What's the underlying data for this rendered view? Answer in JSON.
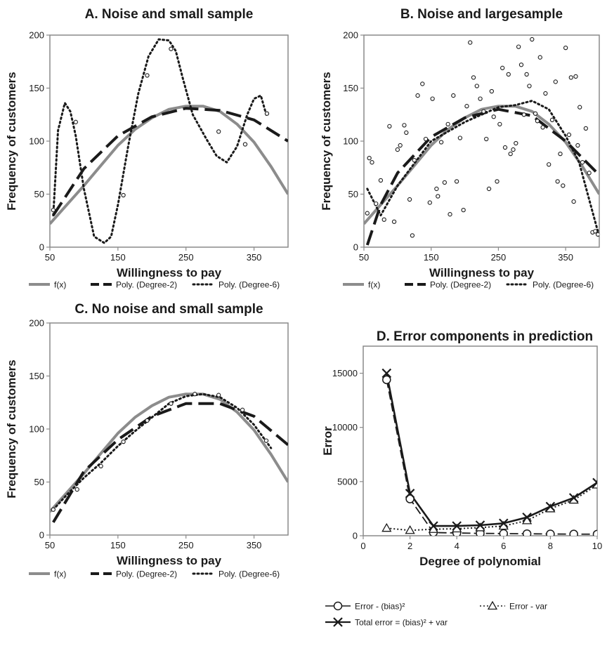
{
  "chart_data": [
    {
      "type": "scatter",
      "title": "A. Noise and small sample",
      "xlabel": "Willingness to pay",
      "ylabel": "Frequency of customers",
      "xlim": [
        50,
        400
      ],
      "ylim": [
        0,
        200
      ],
      "xticks": [
        "50",
        "150",
        "250",
        "350"
      ],
      "yticks": [
        "0",
        "50",
        "100",
        "150",
        "200"
      ],
      "legend_placement": "bottom",
      "points": [
        [
          55,
          35
        ],
        [
          88,
          118
        ],
        [
          158,
          49
        ],
        [
          193,
          162
        ],
        [
          228,
          187
        ],
        [
          298,
          109
        ],
        [
          337,
          97
        ],
        [
          369,
          126
        ]
      ],
      "series": [
        {
          "name": "f(x)",
          "style": "solid-gray",
          "x": [
            50,
            75,
            100,
            125,
            150,
            175,
            200,
            225,
            250,
            275,
            300,
            325,
            350,
            375,
            400
          ],
          "y": [
            22,
            40,
            58,
            77,
            96,
            111,
            122,
            130,
            133,
            133,
            128,
            116,
            99,
            76,
            50
          ]
        },
        {
          "name": "Poly. (Degree-2)",
          "style": "dashed",
          "x": [
            55,
            100,
            150,
            200,
            250,
            300,
            350,
            400
          ],
          "y": [
            30,
            74,
            105,
            123,
            131,
            129,
            120,
            100
          ]
        },
        {
          "name": "Poly. (Degree-6)",
          "style": "dotted",
          "x": [
            55,
            62,
            72,
            80,
            88,
            100,
            115,
            130,
            140,
            150,
            165,
            180,
            195,
            210,
            225,
            235,
            245,
            260,
            280,
            295,
            310,
            325,
            340,
            350,
            360,
            368
          ],
          "y": [
            30,
            110,
            136,
            128,
            105,
            55,
            10,
            4,
            10,
            40,
            95,
            145,
            180,
            196,
            195,
            185,
            160,
            125,
            102,
            86,
            80,
            95,
            125,
            140,
            143,
            125
          ]
        }
      ]
    },
    {
      "type": "scatter",
      "title": "B. Noise and largesample",
      "xlabel": "Willingness to pay",
      "ylabel": "Frequency of customers",
      "xlim": [
        50,
        400
      ],
      "ylim": [
        0,
        200
      ],
      "xticks": [
        "50",
        "150",
        "250",
        "350"
      ],
      "yticks": [
        "0",
        "50",
        "100",
        "150",
        "200"
      ],
      "legend_placement": "bottom",
      "points": [
        [
          55,
          32
        ],
        [
          58,
          84
        ],
        [
          62,
          80
        ],
        [
          68,
          41
        ],
        [
          75,
          63
        ],
        [
          80,
          26
        ],
        [
          88,
          114
        ],
        [
          95,
          24
        ],
        [
          100,
          92
        ],
        [
          104,
          96
        ],
        [
          110,
          115
        ],
        [
          113,
          108
        ],
        [
          118,
          45
        ],
        [
          122,
          11
        ],
        [
          125,
          82
        ],
        [
          130,
          143
        ],
        [
          137,
          154
        ],
        [
          142,
          102
        ],
        [
          148,
          42
        ],
        [
          152,
          140
        ],
        [
          158,
          55
        ],
        [
          160,
          48
        ],
        [
          165,
          99
        ],
        [
          170,
          61
        ],
        [
          175,
          116
        ],
        [
          178,
          31
        ],
        [
          183,
          143
        ],
        [
          188,
          62
        ],
        [
          193,
          103
        ],
        [
          198,
          35
        ],
        [
          203,
          133
        ],
        [
          208,
          193
        ],
        [
          213,
          160
        ],
        [
          218,
          152
        ],
        [
          223,
          140
        ],
        [
          228,
          128
        ],
        [
          232,
          102
        ],
        [
          236,
          55
        ],
        [
          240,
          147
        ],
        [
          243,
          123
        ],
        [
          248,
          62
        ],
        [
          252,
          116
        ],
        [
          256,
          169
        ],
        [
          260,
          94
        ],
        [
          265,
          163
        ],
        [
          268,
          88
        ],
        [
          272,
          92
        ],
        [
          276,
          98
        ],
        [
          280,
          189
        ],
        [
          284,
          172
        ],
        [
          288,
          125
        ],
        [
          292,
          163
        ],
        [
          296,
          152
        ],
        [
          300,
          196
        ],
        [
          305,
          126
        ],
        [
          308,
          119
        ],
        [
          312,
          179
        ],
        [
          316,
          113
        ],
        [
          320,
          145
        ],
        [
          325,
          78
        ],
        [
          330,
          120
        ],
        [
          335,
          156
        ],
        [
          338,
          62
        ],
        [
          342,
          88
        ],
        [
          346,
          58
        ],
        [
          350,
          188
        ],
        [
          355,
          106
        ],
        [
          358,
          160
        ],
        [
          362,
          43
        ],
        [
          365,
          161
        ],
        [
          368,
          96
        ],
        [
          371,
          132
        ],
        [
          375,
          80
        ],
        [
          380,
          112
        ],
        [
          385,
          70
        ],
        [
          390,
          14
        ],
        [
          394,
          15
        ],
        [
          398,
          12
        ]
      ],
      "series": [
        {
          "name": "f(x)",
          "style": "solid-gray",
          "x": [
            50,
            75,
            100,
            125,
            150,
            175,
            200,
            225,
            250,
            275,
            300,
            325,
            350,
            375,
            400
          ],
          "y": [
            22,
            40,
            58,
            77,
            96,
            111,
            122,
            130,
            133,
            133,
            128,
            116,
            99,
            76,
            50
          ]
        },
        {
          "name": "Poly. (Degree-2)",
          "style": "dashed",
          "x": [
            55,
            75,
            100,
            150,
            200,
            250,
            300,
            350,
            400
          ],
          "y": [
            2,
            40,
            70,
            104,
            122,
            130,
            124,
            100,
            68
          ]
        },
        {
          "name": "Poly. (Degree-6)",
          "style": "dotted",
          "x": [
            55,
            75,
            100,
            150,
            200,
            250,
            275,
            300,
            325,
            350,
            370,
            385,
            400
          ],
          "y": [
            55,
            30,
            58,
            100,
            118,
            132,
            134,
            138,
            130,
            105,
            80,
            45,
            10
          ]
        }
      ]
    },
    {
      "type": "scatter",
      "title": "C. No noise and small sample",
      "xlabel": "Willingness to pay",
      "ylabel": "Frequency of customers",
      "xlim": [
        50,
        400
      ],
      "ylim": [
        0,
        200
      ],
      "xticks": [
        "50",
        "150",
        "250",
        "350"
      ],
      "yticks": [
        "0",
        "50",
        "100",
        "150",
        "200"
      ],
      "legend_placement": "bottom",
      "points": [
        [
          55,
          24
        ],
        [
          90,
          43
        ],
        [
          125,
          65
        ],
        [
          158,
          88
        ],
        [
          193,
          108
        ],
        [
          228,
          124
        ],
        [
          263,
          133
        ],
        [
          298,
          132
        ],
        [
          333,
          118
        ],
        [
          368,
          89
        ]
      ],
      "series": [
        {
          "name": "f(x)",
          "style": "solid-gray",
          "x": [
            50,
            75,
            100,
            125,
            150,
            175,
            200,
            225,
            250,
            275,
            300,
            325,
            350,
            375,
            400
          ],
          "y": [
            22,
            40,
            58,
            77,
            96,
            111,
            122,
            130,
            133,
            133,
            128,
            116,
            99,
            76,
            50
          ]
        },
        {
          "name": "Poly. (Degree-2)",
          "style": "dashed",
          "x": [
            55,
            100,
            150,
            200,
            250,
            300,
            350,
            400
          ],
          "y": [
            12,
            60,
            90,
            112,
            124,
            124,
            112,
            85
          ]
        },
        {
          "name": "Poly. (Degree-6)",
          "style": "dotted",
          "x": [
            55,
            75,
            100,
            125,
            150,
            175,
            200,
            225,
            250,
            275,
            300,
            325,
            350,
            375
          ],
          "y": [
            24,
            38,
            54,
            68,
            84,
            98,
            111,
            124,
            131,
            133,
            130,
            120,
            104,
            82
          ]
        }
      ]
    },
    {
      "type": "line",
      "title": "D. Error components in prediction",
      "xlabel": "Degree of polynomial",
      "ylabel": "Error",
      "xlim": [
        0,
        10
      ],
      "ylim": [
        0,
        17500
      ],
      "xticks": [
        "0",
        "2",
        "4",
        "6",
        "8",
        "10"
      ],
      "yticks": [
        "0",
        "5000",
        "10000",
        "15000"
      ],
      "legend_placement": "bottom",
      "x": [
        1,
        2,
        3,
        4,
        5,
        6,
        7,
        8,
        9,
        10
      ],
      "series": [
        {
          "name": "Error - (bias)²",
          "style": "dashed-circle",
          "values": [
            14400,
            3400,
            300,
            250,
            220,
            200,
            180,
            160,
            150,
            140
          ]
        },
        {
          "name": "Error - var",
          "style": "dotted-triangle",
          "values": [
            700,
            500,
            600,
            650,
            750,
            900,
            1400,
            2500,
            3300,
            4700
          ]
        },
        {
          "name": "Total error = (bias)² + var",
          "style": "solid-cross",
          "values": [
            15000,
            3900,
            900,
            900,
            970,
            1150,
            1700,
            2700,
            3500,
            4900
          ]
        }
      ]
    }
  ]
}
